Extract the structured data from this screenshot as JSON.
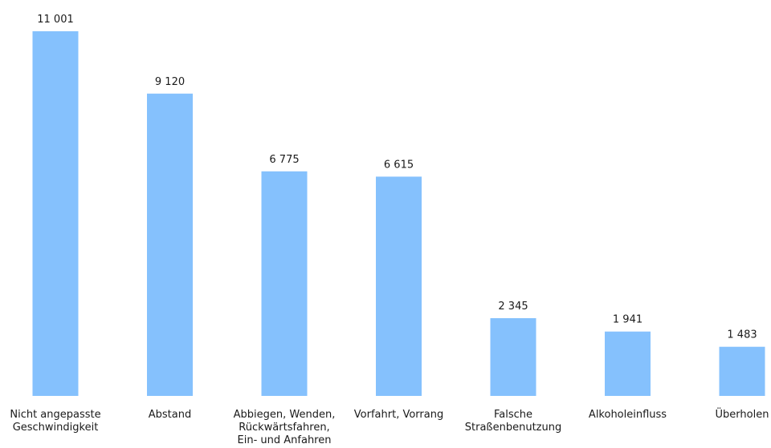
{
  "chart_data": {
    "type": "bar",
    "categories": [
      [
        "Nicht angepasste",
        "Geschwindigkeit"
      ],
      [
        "Abstand"
      ],
      [
        "Abbiegen, Wenden,",
        "Rückwärtsfahren,",
        "Ein- und Anfahren"
      ],
      [
        "Vorfahrt, Vorrang"
      ],
      [
        "Falsche",
        "Straßenbenutzung"
      ],
      [
        "Alkoholeinfluss"
      ],
      [
        "Überholen"
      ]
    ],
    "values": [
      11001,
      9120,
      6775,
      6615,
      2345,
      1941,
      1483
    ],
    "value_labels": [
      "11 001",
      "9 120",
      "6 775",
      "6 615",
      "2 345",
      "1 941",
      "1 483"
    ],
    "bar_color": "#85c1fd",
    "text_color": "#1a1a1a",
    "ylim": [
      0,
      11001
    ],
    "grid": false,
    "legend": "none"
  }
}
